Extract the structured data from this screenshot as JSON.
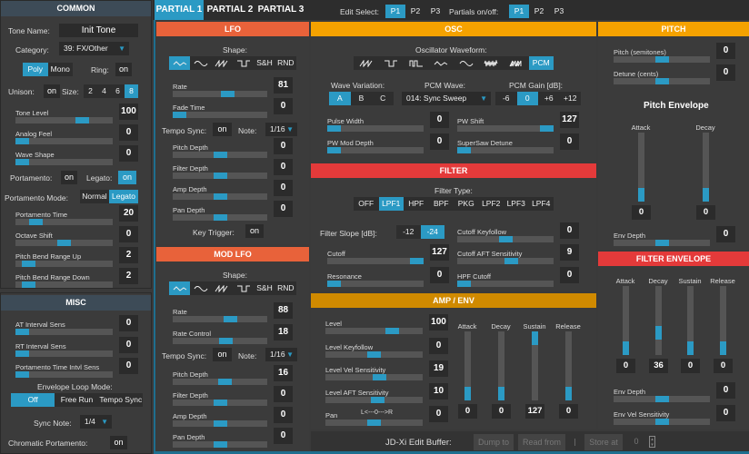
{
  "colors": {
    "accent": "#2b9ac4",
    "lfo": "#e8623a",
    "osc": "#f5a200",
    "filter": "#e43a3a",
    "amp": "#d08a00",
    "common_header": "#3d4b57"
  },
  "common": {
    "title": "COMMON",
    "tone_name_label": "Tone Name:",
    "tone_name": "Init Tone",
    "category_label": "Category:",
    "category": "39: FX/Other",
    "voice_mode": {
      "items": [
        "Poly",
        "Mono"
      ],
      "active": 0
    },
    "ring_label": "Ring:",
    "ring": "on",
    "unison_label": "Unison:",
    "unison": "on",
    "size_label": "Size:",
    "size": {
      "items": [
        "2",
        "4",
        "6",
        "8"
      ],
      "active": 3
    },
    "tone_level": {
      "label": "Tone Level",
      "value": "100",
      "pos": 0.72
    },
    "analog_feel": {
      "label": "Analog Feel",
      "value": "0",
      "pos": 0
    },
    "wave_shape": {
      "label": "Wave Shape",
      "value": "0",
      "pos": 0
    },
    "portamento_label": "Portamento:",
    "portamento": "on",
    "legato_label": "Legato:",
    "legato": "on",
    "portamento_mode_label": "Portamento Mode:",
    "portamento_mode": {
      "items": [
        "Normal",
        "Legato"
      ],
      "active": 1
    },
    "portamento_time": {
      "label": "Portamento Time",
      "value": "20",
      "pos": 0.16
    },
    "octave_shift": {
      "label": "Octave Shift",
      "value": "0",
      "pos": 0.5
    },
    "pb_up": {
      "label": "Pitch Bend Range Up",
      "value": "2",
      "pos": 0.08
    },
    "pb_down": {
      "label": "Pitch Bend Range Down",
      "value": "2",
      "pos": 0.08
    }
  },
  "misc": {
    "title": "MISC",
    "at_interval": {
      "label": "AT Interval Sens",
      "value": "0",
      "pos": 0
    },
    "rt_interval": {
      "label": "RT Interval Sens",
      "value": "0",
      "pos": 0
    },
    "porta_intvl": {
      "label": "Portamento Time Intvl Sens",
      "value": "0",
      "pos": 0
    },
    "env_loop_label": "Envelope Loop Mode:",
    "env_loop": {
      "items": [
        "Off",
        "Free Run",
        "Tempo Sync"
      ],
      "active": 0
    },
    "sync_note_label": "Sync Note:",
    "sync_note": "1/4",
    "chromatic_label": "Chromatic Portamento:",
    "chromatic": "on"
  },
  "tabs": {
    "items": [
      "PARTIAL 1",
      "PARTIAL 2",
      "PARTIAL 3"
    ],
    "active": 0
  },
  "edit_select": {
    "label": "Edit Select:",
    "group": {
      "items": [
        "P1",
        "P2",
        "P3"
      ],
      "active": 0
    }
  },
  "partials_onoff": {
    "label": "Partials on/off:",
    "group": {
      "items": [
        "P1",
        "P2",
        "P3"
      ],
      "active": 0
    }
  },
  "lfo": {
    "title": "LFO",
    "shape_label": "Shape:",
    "shape": {
      "items": [
        {
          "icon": "triangle"
        },
        {
          "icon": "sine"
        },
        {
          "icon": "saw"
        },
        {
          "icon": "square"
        },
        "S&H",
        "RND"
      ],
      "active": 0
    },
    "rate": {
      "label": "Rate",
      "value": "81",
      "pos": 0.6
    },
    "fade_time": {
      "label": "Fade Time",
      "value": "0",
      "pos": 0
    },
    "tempo_sync_label": "Tempo Sync:",
    "tempo_sync": "on",
    "note_label": "Note:",
    "note": "1/16",
    "pitch_depth": {
      "label": "Pitch Depth",
      "value": "0",
      "pos": 0.5
    },
    "filter_depth": {
      "label": "Filter Depth",
      "value": "0",
      "pos": 0.5
    },
    "amp_depth": {
      "label": "Amp Depth",
      "value": "0",
      "pos": 0.5
    },
    "pan_depth": {
      "label": "Pan Depth",
      "value": "0",
      "pos": 0.5
    },
    "key_trigger_label": "Key Trigger:",
    "key_trigger": "on"
  },
  "mod_lfo": {
    "title": "MOD LFO",
    "shape_label": "Shape:",
    "shape": {
      "items": [
        {
          "icon": "triangle"
        },
        {
          "icon": "sine"
        },
        {
          "icon": "saw"
        },
        {
          "icon": "square"
        },
        "S&H",
        "RND"
      ],
      "active": 0
    },
    "rate": {
      "label": "Rate",
      "value": "88",
      "pos": 0.63
    },
    "rate_control": {
      "label": "Rate Control",
      "value": "18",
      "pos": 0.57
    },
    "tempo_sync_label": "Tempo Sync:",
    "tempo_sync": "on",
    "note_label": "Note:",
    "note": "1/16",
    "pitch_depth": {
      "label": "Pitch Depth",
      "value": "16",
      "pos": 0.56
    },
    "filter_depth": {
      "label": "Filter Depth",
      "value": "0",
      "pos": 0.5
    },
    "amp_depth": {
      "label": "Amp Depth",
      "value": "0",
      "pos": 0.5
    },
    "pan_depth": {
      "label": "Pan Depth",
      "value": "0",
      "pos": 0.5
    }
  },
  "osc": {
    "title": "OSC",
    "waveform_label": "Oscillator Waveform:",
    "waveform": {
      "items": [
        {
          "icon": "saw"
        },
        {
          "icon": "square"
        },
        {
          "icon": "pw-square"
        },
        {
          "icon": "triangle"
        },
        {
          "icon": "sine"
        },
        {
          "icon": "noise"
        },
        {
          "icon": "supersaw"
        },
        "PCM"
      ],
      "active": 7
    },
    "wave_variation_label": "Wave Variation:",
    "wave_variation": {
      "items": [
        "A",
        "B",
        "C"
      ],
      "active": 0
    },
    "pcm_wave_label": "PCM Wave:",
    "pcm_wave": "014: Sync Sweep",
    "pcm_gain_label": "PCM Gain [dB]:",
    "pcm_gain": {
      "items": [
        "-6",
        "0",
        "+6",
        "+12"
      ],
      "active": 1
    },
    "pulse_width": {
      "label": "Pulse Width",
      "value": "0",
      "pos": 0
    },
    "pw_shift": {
      "label": "PW Shift",
      "value": "127",
      "pos": 1
    },
    "pw_mod_depth": {
      "label": "PW Mod Depth",
      "value": "0",
      "pos": 0
    },
    "supersaw_detune": {
      "label": "SuperSaw Detune",
      "value": "0",
      "pos": 0
    }
  },
  "filter": {
    "title": "FILTER",
    "type_label": "Filter Type:",
    "type": {
      "items": [
        "OFF",
        "LPF1",
        "HPF",
        "BPF",
        "PKG",
        "LPF2",
        "LPF3",
        "LPF4"
      ],
      "active": 1
    },
    "slope_label": "Filter Slope [dB]:",
    "slope": {
      "items": [
        "-12",
        "-24"
      ],
      "active": 1
    },
    "cutoff": {
      "label": "Cutoff",
      "value": "127",
      "pos": 1
    },
    "resonance": {
      "label": "Resonance",
      "value": "0",
      "pos": 0
    },
    "cutoff_keyfollow": {
      "label": "Cutoff Keyfollow",
      "value": "0",
      "pos": 0.5
    },
    "cutoff_aft": {
      "label": "Cutoff AFT Sensitivity",
      "value": "9",
      "pos": 0.57
    },
    "hpf_cutoff": {
      "label": "HPF Cutoff",
      "value": "0",
      "pos": 0
    }
  },
  "amp": {
    "title": "AMP / ENV",
    "level": {
      "label": "Level",
      "value": "100",
      "pos": 0.72
    },
    "level_keyfollow": {
      "label": "Level Keyfollow",
      "value": "0",
      "pos": 0.5
    },
    "level_vel": {
      "label": "Level Vel Sensitivity",
      "value": "19",
      "pos": 0.57
    },
    "level_aft": {
      "label": "Level AFT Sensitivity",
      "value": "10",
      "pos": 0.54
    },
    "pan": {
      "label": "Pan",
      "value": "0",
      "pos": 0.5
    },
    "pan_scale": "L<---0--->R",
    "env": [
      {
        "label": "Attack",
        "value": "0",
        "pos": 0
      },
      {
        "label": "Decay",
        "value": "0",
        "pos": 0
      },
      {
        "label": "Sustain",
        "value": "127",
        "pos": 1
      },
      {
        "label": "Release",
        "value": "0",
        "pos": 0
      }
    ]
  },
  "pitch": {
    "title": "PITCH",
    "semitones": {
      "label": "Pitch (semitones)",
      "value": "0",
      "pos": 0.5
    },
    "detune": {
      "label": "Detune (cents)",
      "value": "0",
      "pos": 0.5
    },
    "env_title": "Pitch Envelope",
    "env": [
      {
        "label": "Attack",
        "value": "0",
        "pos": 0
      },
      {
        "label": "Decay",
        "value": "0",
        "pos": 0
      }
    ],
    "env_depth": {
      "label": "Env Depth",
      "value": "0",
      "pos": 0.5
    }
  },
  "filter_env": {
    "title": "FILTER ENVELOPE",
    "env": [
      {
        "label": "Attack",
        "value": "0",
        "pos": 0
      },
      {
        "label": "Decay",
        "value": "36",
        "pos": 0.28
      },
      {
        "label": "Sustain",
        "value": "0",
        "pos": 0
      },
      {
        "label": "Release",
        "value": "0",
        "pos": 0
      }
    ],
    "env_depth": {
      "label": "Env Depth",
      "value": "0",
      "pos": 0.5
    },
    "env_vel": {
      "label": "Env Vel Sensitivity",
      "value": "0",
      "pos": 0.5
    }
  },
  "edit_buffer": {
    "label": "JD-Xi Edit Buffer:",
    "dump": "Dump to",
    "read": "Read from",
    "store": "Store at",
    "slot": "0"
  }
}
